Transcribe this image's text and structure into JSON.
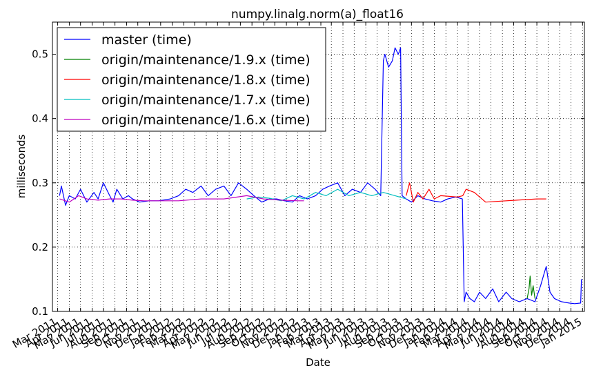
{
  "chart_data": {
    "type": "line",
    "title": "numpy.linalg.norm(a)_float16",
    "xlabel": "Date",
    "ylabel": "milliseconds",
    "ylim": [
      0.1,
      0.55
    ],
    "xlim": [
      "2011-03-01",
      "2015-01-20"
    ],
    "y_ticks": [
      0.1,
      0.2,
      0.3,
      0.4,
      0.5
    ],
    "y_tick_labels": [
      "0.1",
      "0.2",
      "0.3",
      "0.4",
      "0.5"
    ],
    "x_ticks": [
      "2011-03-15",
      "2011-04-15",
      "2011-05-15",
      "2011-06-15",
      "2011-07-15",
      "2011-08-15",
      "2011-09-15",
      "2011-10-15",
      "2011-11-15",
      "2011-12-15",
      "2012-01-15",
      "2012-02-15",
      "2012-03-15",
      "2012-04-15",
      "2012-05-15",
      "2012-06-15",
      "2012-07-15",
      "2012-08-15",
      "2012-09-15",
      "2012-10-15",
      "2012-11-15",
      "2012-12-15",
      "2013-01-15",
      "2013-02-15",
      "2013-03-15",
      "2013-04-15",
      "2013-05-15",
      "2013-06-15",
      "2013-07-15",
      "2013-08-15",
      "2013-09-15",
      "2013-10-15",
      "2013-11-15",
      "2013-12-15",
      "2014-01-15",
      "2014-02-15",
      "2014-03-15",
      "2014-04-15",
      "2014-05-15",
      "2014-06-15",
      "2014-07-15",
      "2014-08-15",
      "2014-09-15",
      "2014-10-15",
      "2014-11-15",
      "2014-12-15",
      "2015-01-15"
    ],
    "x_tick_labels": [
      "Mar 2011",
      "Apr 2011",
      "May 2011",
      "Jun 2011",
      "Jul 2011",
      "Aug 2011",
      "Sep 2011",
      "Oct 2011",
      "Nov 2011",
      "Dec 2011",
      "Jan 2012",
      "Feb 2012",
      "Mar 2012",
      "Apr 2012",
      "May 2012",
      "Jun 2012",
      "Jul 2012",
      "Aug 2012",
      "Sep 2012",
      "Oct 2012",
      "Nov 2012",
      "Dec 2012",
      "Jan 2013",
      "Feb 2013",
      "Mar 2013",
      "Apr 2013",
      "May 2013",
      "Jun 2013",
      "Jul 2013",
      "Aug 2013",
      "Sep 2013",
      "Oct 2013",
      "Nov 2013",
      "Dec 2013",
      "Jan 2014",
      "Feb 2014",
      "Mar 2014",
      "Apr 2014",
      "May 2014",
      "Jun 2014",
      "Jul 2014",
      "Aug 2014",
      "Sep 2014",
      "Oct 2014",
      "Nov 2014",
      "Dec 2014",
      "Jan 2015"
    ],
    "grid": true,
    "legend_position": "top-left",
    "series": [
      {
        "name": "master (time)",
        "color": "#0000ff",
        "x": [
          "2011-03-20",
          "2011-03-25",
          "2011-04-05",
          "2011-04-15",
          "2011-05-01",
          "2011-05-15",
          "2011-06-01",
          "2011-06-20",
          "2011-07-01",
          "2011-07-15",
          "2011-08-01",
          "2011-08-10",
          "2011-08-20",
          "2011-09-05",
          "2011-09-20",
          "2011-10-01",
          "2011-10-20",
          "2011-11-15",
          "2011-12-10",
          "2012-01-10",
          "2012-02-01",
          "2012-02-20",
          "2012-03-10",
          "2012-04-01",
          "2012-04-20",
          "2012-05-10",
          "2012-06-01",
          "2012-06-20",
          "2012-07-10",
          "2012-08-01",
          "2012-08-20",
          "2012-09-10",
          "2012-10-01",
          "2012-10-20",
          "2012-11-10",
          "2012-12-01",
          "2012-12-20",
          "2013-01-10",
          "2013-02-01",
          "2013-02-20",
          "2013-03-10",
          "2013-04-01",
          "2013-04-20",
          "2013-05-10",
          "2013-06-01",
          "2013-06-20",
          "2013-07-10",
          "2013-07-25",
          "2013-08-01",
          "2013-08-05",
          "2013-08-15",
          "2013-08-25",
          "2013-09-01",
          "2013-09-10",
          "2013-09-16",
          "2013-09-20",
          "2013-10-01",
          "2013-10-15",
          "2013-11-01",
          "2013-11-20",
          "2013-12-10",
          "2014-01-01",
          "2014-01-20",
          "2014-02-10",
          "2014-02-28",
          "2014-03-05",
          "2014-03-10",
          "2014-03-20",
          "2014-04-01",
          "2014-04-15",
          "2014-05-01",
          "2014-05-20",
          "2014-06-05",
          "2014-06-25",
          "2014-07-10",
          "2014-07-30",
          "2014-08-20",
          "2014-09-10",
          "2014-09-25",
          "2014-10-05",
          "2014-10-10",
          "2014-10-20",
          "2014-11-01",
          "2014-11-20",
          "2014-12-10",
          "2014-12-25",
          "2015-01-10",
          "2015-01-12"
        ],
        "y": [
          0.28,
          0.295,
          0.265,
          0.28,
          0.275,
          0.29,
          0.27,
          0.285,
          0.275,
          0.3,
          0.28,
          0.27,
          0.29,
          0.275,
          0.28,
          0.275,
          0.27,
          0.272,
          0.272,
          0.275,
          0.28,
          0.29,
          0.285,
          0.295,
          0.28,
          0.29,
          0.295,
          0.28,
          0.3,
          0.29,
          0.28,
          0.27,
          0.275,
          0.275,
          0.272,
          0.27,
          0.28,
          0.275,
          0.28,
          0.29,
          0.295,
          0.3,
          0.28,
          0.29,
          0.285,
          0.3,
          0.29,
          0.28,
          0.49,
          0.5,
          0.48,
          0.49,
          0.51,
          0.5,
          0.51,
          0.28,
          0.275,
          0.27,
          0.28,
          0.275,
          0.272,
          0.27,
          0.275,
          0.278,
          0.275,
          0.115,
          0.13,
          0.12,
          0.115,
          0.13,
          0.12,
          0.135,
          0.115,
          0.13,
          0.12,
          0.115,
          0.12,
          0.115,
          0.14,
          0.16,
          0.17,
          0.13,
          0.12,
          0.115,
          0.113,
          0.112,
          0.113,
          0.15
        ]
      },
      {
        "name": "origin/maintenance/1.9.x (time)",
        "color": "#008000",
        "x": [
          "2014-08-20",
          "2014-08-25",
          "2014-08-28",
          "2014-09-01",
          "2014-09-05",
          "2014-09-10"
        ],
        "y": [
          0.12,
          0.135,
          0.155,
          0.125,
          0.14,
          0.12
        ]
      },
      {
        "name": "origin/maintenance/1.8.x (time)",
        "color": "#ff0000",
        "x": [
          "2013-10-01",
          "2013-10-10",
          "2013-10-20",
          "2013-11-01",
          "2013-11-15",
          "2013-12-01",
          "2013-12-15",
          "2014-01-01",
          "2014-02-15",
          "2014-03-01",
          "2014-03-10",
          "2014-04-01",
          "2014-05-01",
          "2014-09-15",
          "2014-10-10"
        ],
        "y": [
          0.28,
          0.3,
          0.27,
          0.285,
          0.275,
          0.29,
          0.275,
          0.28,
          0.278,
          0.28,
          0.29,
          0.285,
          0.27,
          0.275,
          0.275
        ]
      },
      {
        "name": "origin/maintenance/1.7.x (time)",
        "color": "#00bfbf",
        "x": [
          "2012-08-01",
          "2012-09-01",
          "2012-10-01",
          "2012-11-01",
          "2012-12-01",
          "2013-01-01",
          "2013-02-01",
          "2013-03-01",
          "2013-04-01",
          "2013-05-01",
          "2013-06-01",
          "2013-07-01",
          "2013-08-01",
          "2013-09-01",
          "2013-10-01"
        ],
        "y": [
          0.275,
          0.278,
          0.276,
          0.272,
          0.28,
          0.275,
          0.285,
          0.28,
          0.29,
          0.28,
          0.285,
          0.28,
          0.285,
          0.28,
          0.275
        ]
      },
      {
        "name": "origin/maintenance/1.6.x (time)",
        "color": "#bf00bf",
        "x": [
          "2011-03-20",
          "2011-04-15",
          "2011-05-10",
          "2011-06-01",
          "2011-07-01",
          "2011-08-01",
          "2011-09-01",
          "2011-10-01",
          "2011-11-01",
          "2011-12-01",
          "2012-02-01",
          "2012-04-01",
          "2012-06-01",
          "2012-08-01",
          "2012-09-15",
          "2012-11-01",
          "2012-12-15",
          "2013-01-01"
        ],
        "y": [
          0.275,
          0.27,
          0.28,
          0.275,
          0.273,
          0.275,
          0.275,
          0.273,
          0.272,
          0.272,
          0.272,
          0.275,
          0.275,
          0.28,
          0.275,
          0.273,
          0.272,
          0.272
        ]
      }
    ]
  }
}
